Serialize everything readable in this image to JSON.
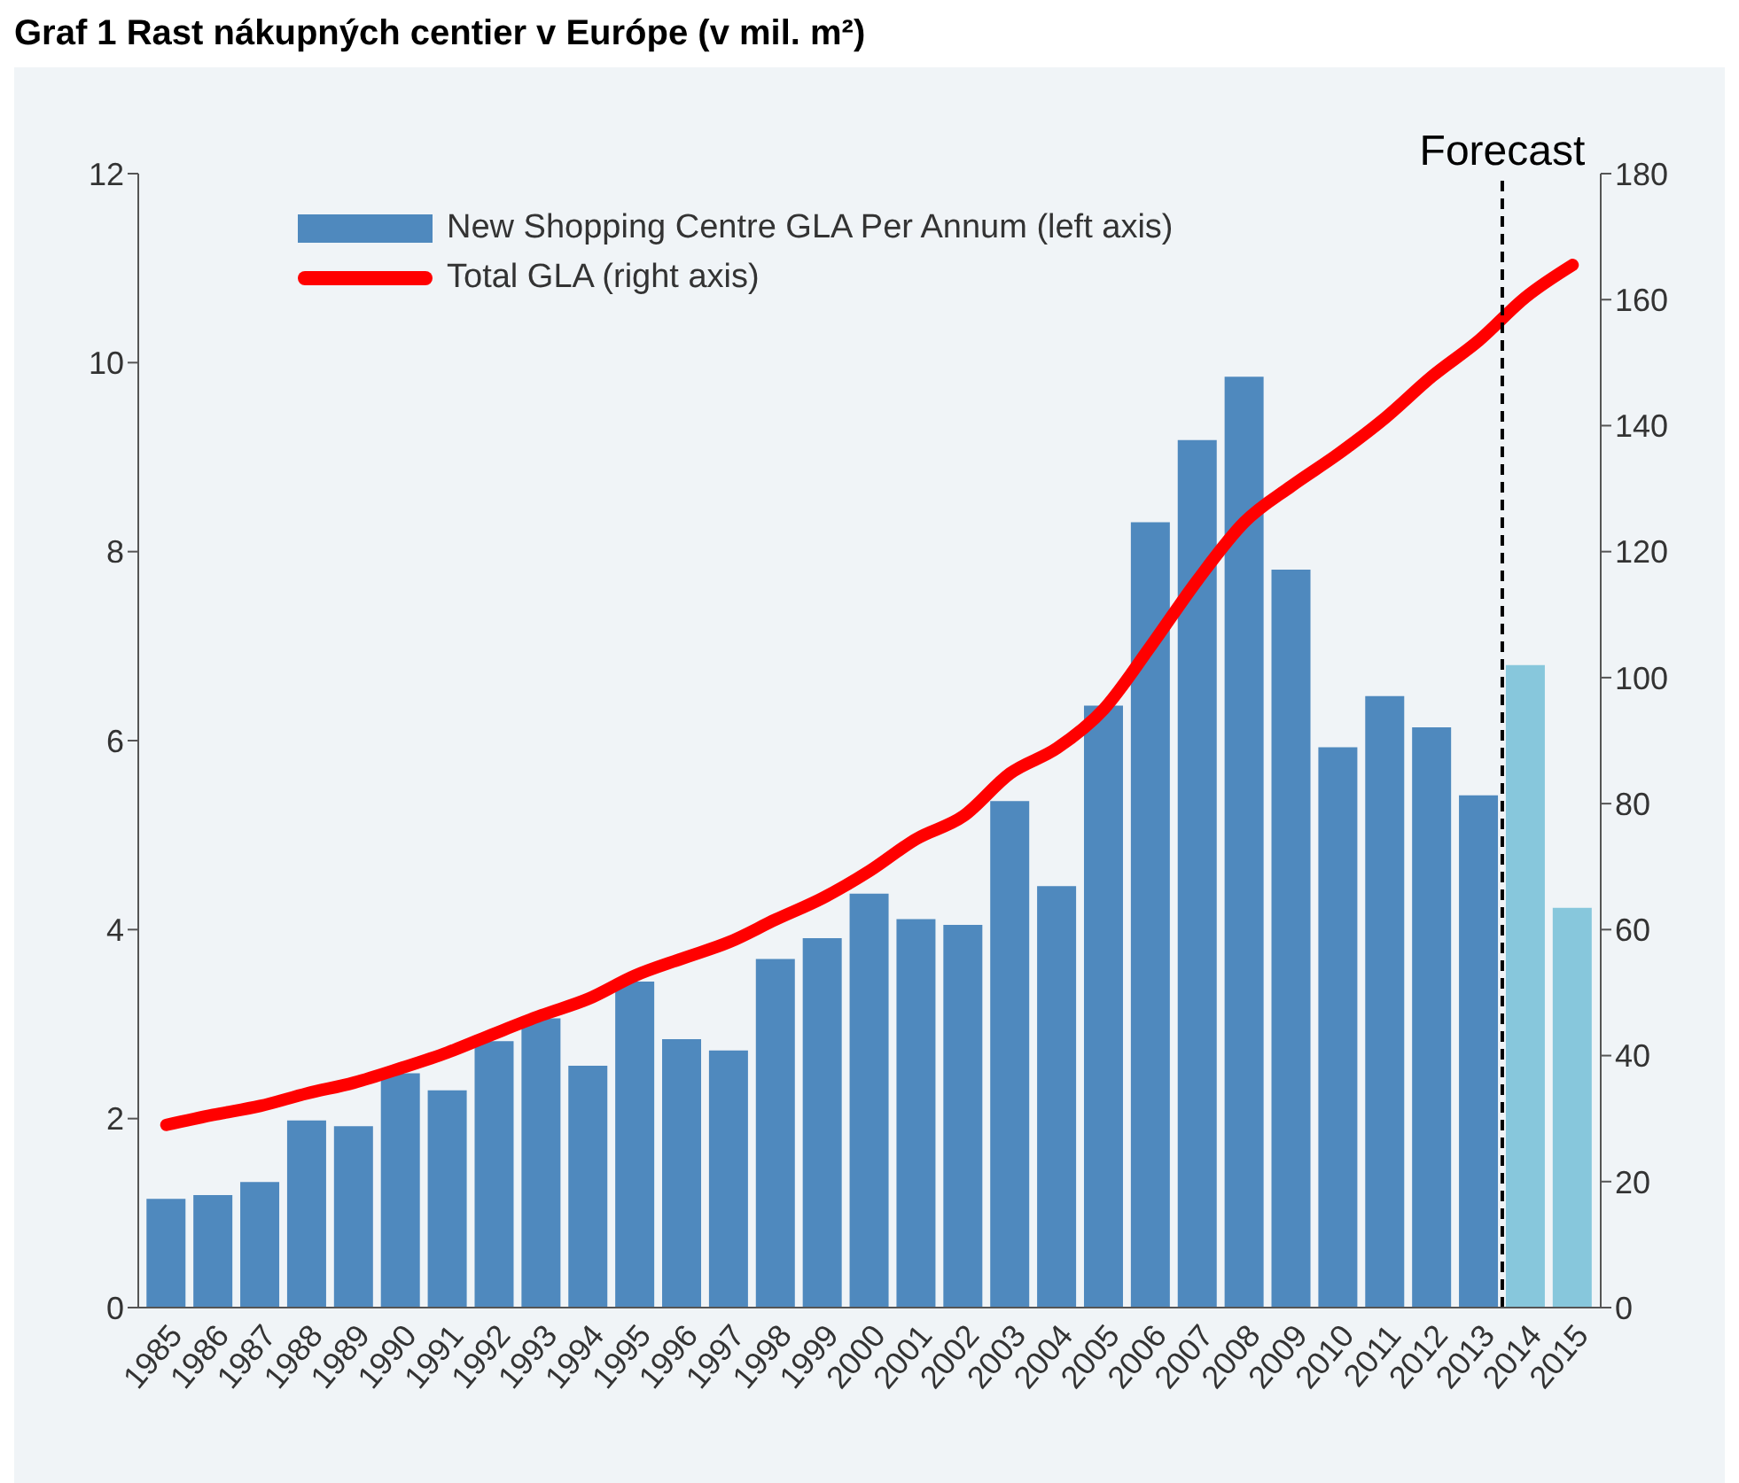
{
  "chart_data": {
    "type": "bar",
    "title": "Graf 1 Rast nákupných centier v Európe (v mil. m²)",
    "x": [
      1985,
      1986,
      1987,
      1988,
      1989,
      1990,
      1991,
      1992,
      1993,
      1994,
      1995,
      1996,
      1997,
      1998,
      1999,
      2000,
      2001,
      2002,
      2003,
      2004,
      2005,
      2006,
      2007,
      2008,
      2009,
      2010,
      2011,
      2012,
      2013,
      2014,
      2015
    ],
    "xlim": [
      1984.4,
      2015.6
    ],
    "xticks": [
      1985,
      1986,
      1987,
      1988,
      1989,
      1990,
      1991,
      1992,
      1993,
      1994,
      1995,
      1996,
      1997,
      1998,
      1999,
      2000,
      2001,
      2002,
      2003,
      2004,
      2005,
      2006,
      2007,
      2008,
      2009,
      2010,
      2011,
      2012,
      2013,
      2014,
      2015
    ],
    "series": [
      {
        "name": "New Shopping Centre GLA Per Annum (left axis)",
        "color": "#4f89be",
        "colors": [
          "#4f89be",
          "#4f89be",
          "#4f89be",
          "#4f89be",
          "#4f89be",
          "#4f89be",
          "#4f89be",
          "#4f89be",
          "#4f89be",
          "#4f89be",
          "#4f89be",
          "#4f89be",
          "#4f89be",
          "#4f89be",
          "#4f89be",
          "#4f89be",
          "#4f89be",
          "#4f89be",
          "#4f89be",
          "#4f89be",
          "#4f89be",
          "#4f89be",
          "#4f89be",
          "#4f89be",
          "#4f89be",
          "#4f89be",
          "#4f89be",
          "#4f89be",
          "#4f89be",
          "#87c7dc",
          "#87c7dc"
        ],
        "values": [
          1.15,
          1.19,
          1.33,
          1.98,
          1.92,
          2.48,
          2.3,
          2.82,
          3.06,
          2.56,
          3.45,
          2.84,
          2.72,
          3.69,
          3.91,
          4.38,
          4.11,
          4.05,
          5.36,
          4.46,
          6.37,
          8.31,
          9.18,
          9.85,
          7.81,
          5.93,
          6.47,
          6.14,
          5.42,
          6.8,
          4.23
        ]
      },
      {
        "name": "Total GLA (right axis)",
        "type": "line",
        "axis": "y2",
        "color": "#ff0000",
        "values": [
          29,
          30.6,
          32,
          34,
          35.7,
          38,
          40.5,
          43.5,
          46.4,
          49,
          52.7,
          55.4,
          58,
          61.6,
          65,
          69.3,
          74.4,
          78,
          84.8,
          88.8,
          95,
          105,
          115.5,
          124.7,
          130.4,
          135.5,
          141.2,
          147.8,
          153.5,
          160.4,
          165.5
        ]
      }
    ],
    "ylim": [
      0,
      12
    ],
    "yticks": [
      0,
      2,
      4,
      6,
      8,
      10,
      12
    ],
    "y2lim": [
      0,
      180
    ],
    "y2ticks": [
      0,
      20,
      40,
      60,
      80,
      100,
      120,
      140,
      160,
      180
    ],
    "ref_lines": [
      {
        "axis": "x",
        "value": 2013.5,
        "label": "Forecast",
        "color": "#000000",
        "line_style": "dashed"
      }
    ],
    "legend": "top left",
    "marker": "none",
    "line_style": "solid"
  }
}
